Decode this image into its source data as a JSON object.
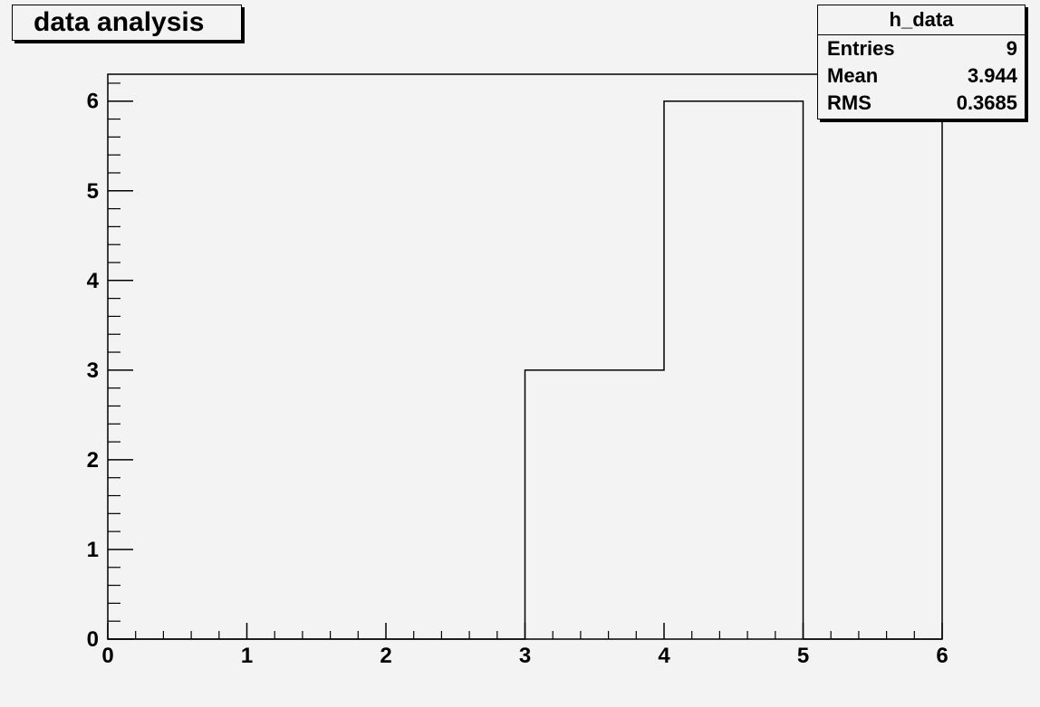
{
  "title": "data analysis",
  "stats": {
    "name": "h_data",
    "rows": [
      {
        "label": "Entries",
        "value": "9"
      },
      {
        "label": "Mean",
        "value": "3.944"
      },
      {
        "label": "RMS",
        "value": "0.3685"
      }
    ]
  },
  "chart_data": {
    "type": "bar",
    "style": "step-histogram",
    "bin_edges": [
      0,
      1,
      2,
      3,
      4,
      5,
      6
    ],
    "values": [
      0,
      0,
      0,
      3,
      6,
      0
    ],
    "xlim": [
      0,
      6
    ],
    "ylim": [
      0,
      6.3
    ],
    "x_ticks": [
      "0",
      "1",
      "2",
      "3",
      "4",
      "5",
      "6"
    ],
    "y_ticks": [
      "0",
      "1",
      "2",
      "3",
      "4",
      "5",
      "6"
    ],
    "grid": false,
    "colors": {
      "line": "#000000",
      "background": "#f3f3f3"
    }
  }
}
